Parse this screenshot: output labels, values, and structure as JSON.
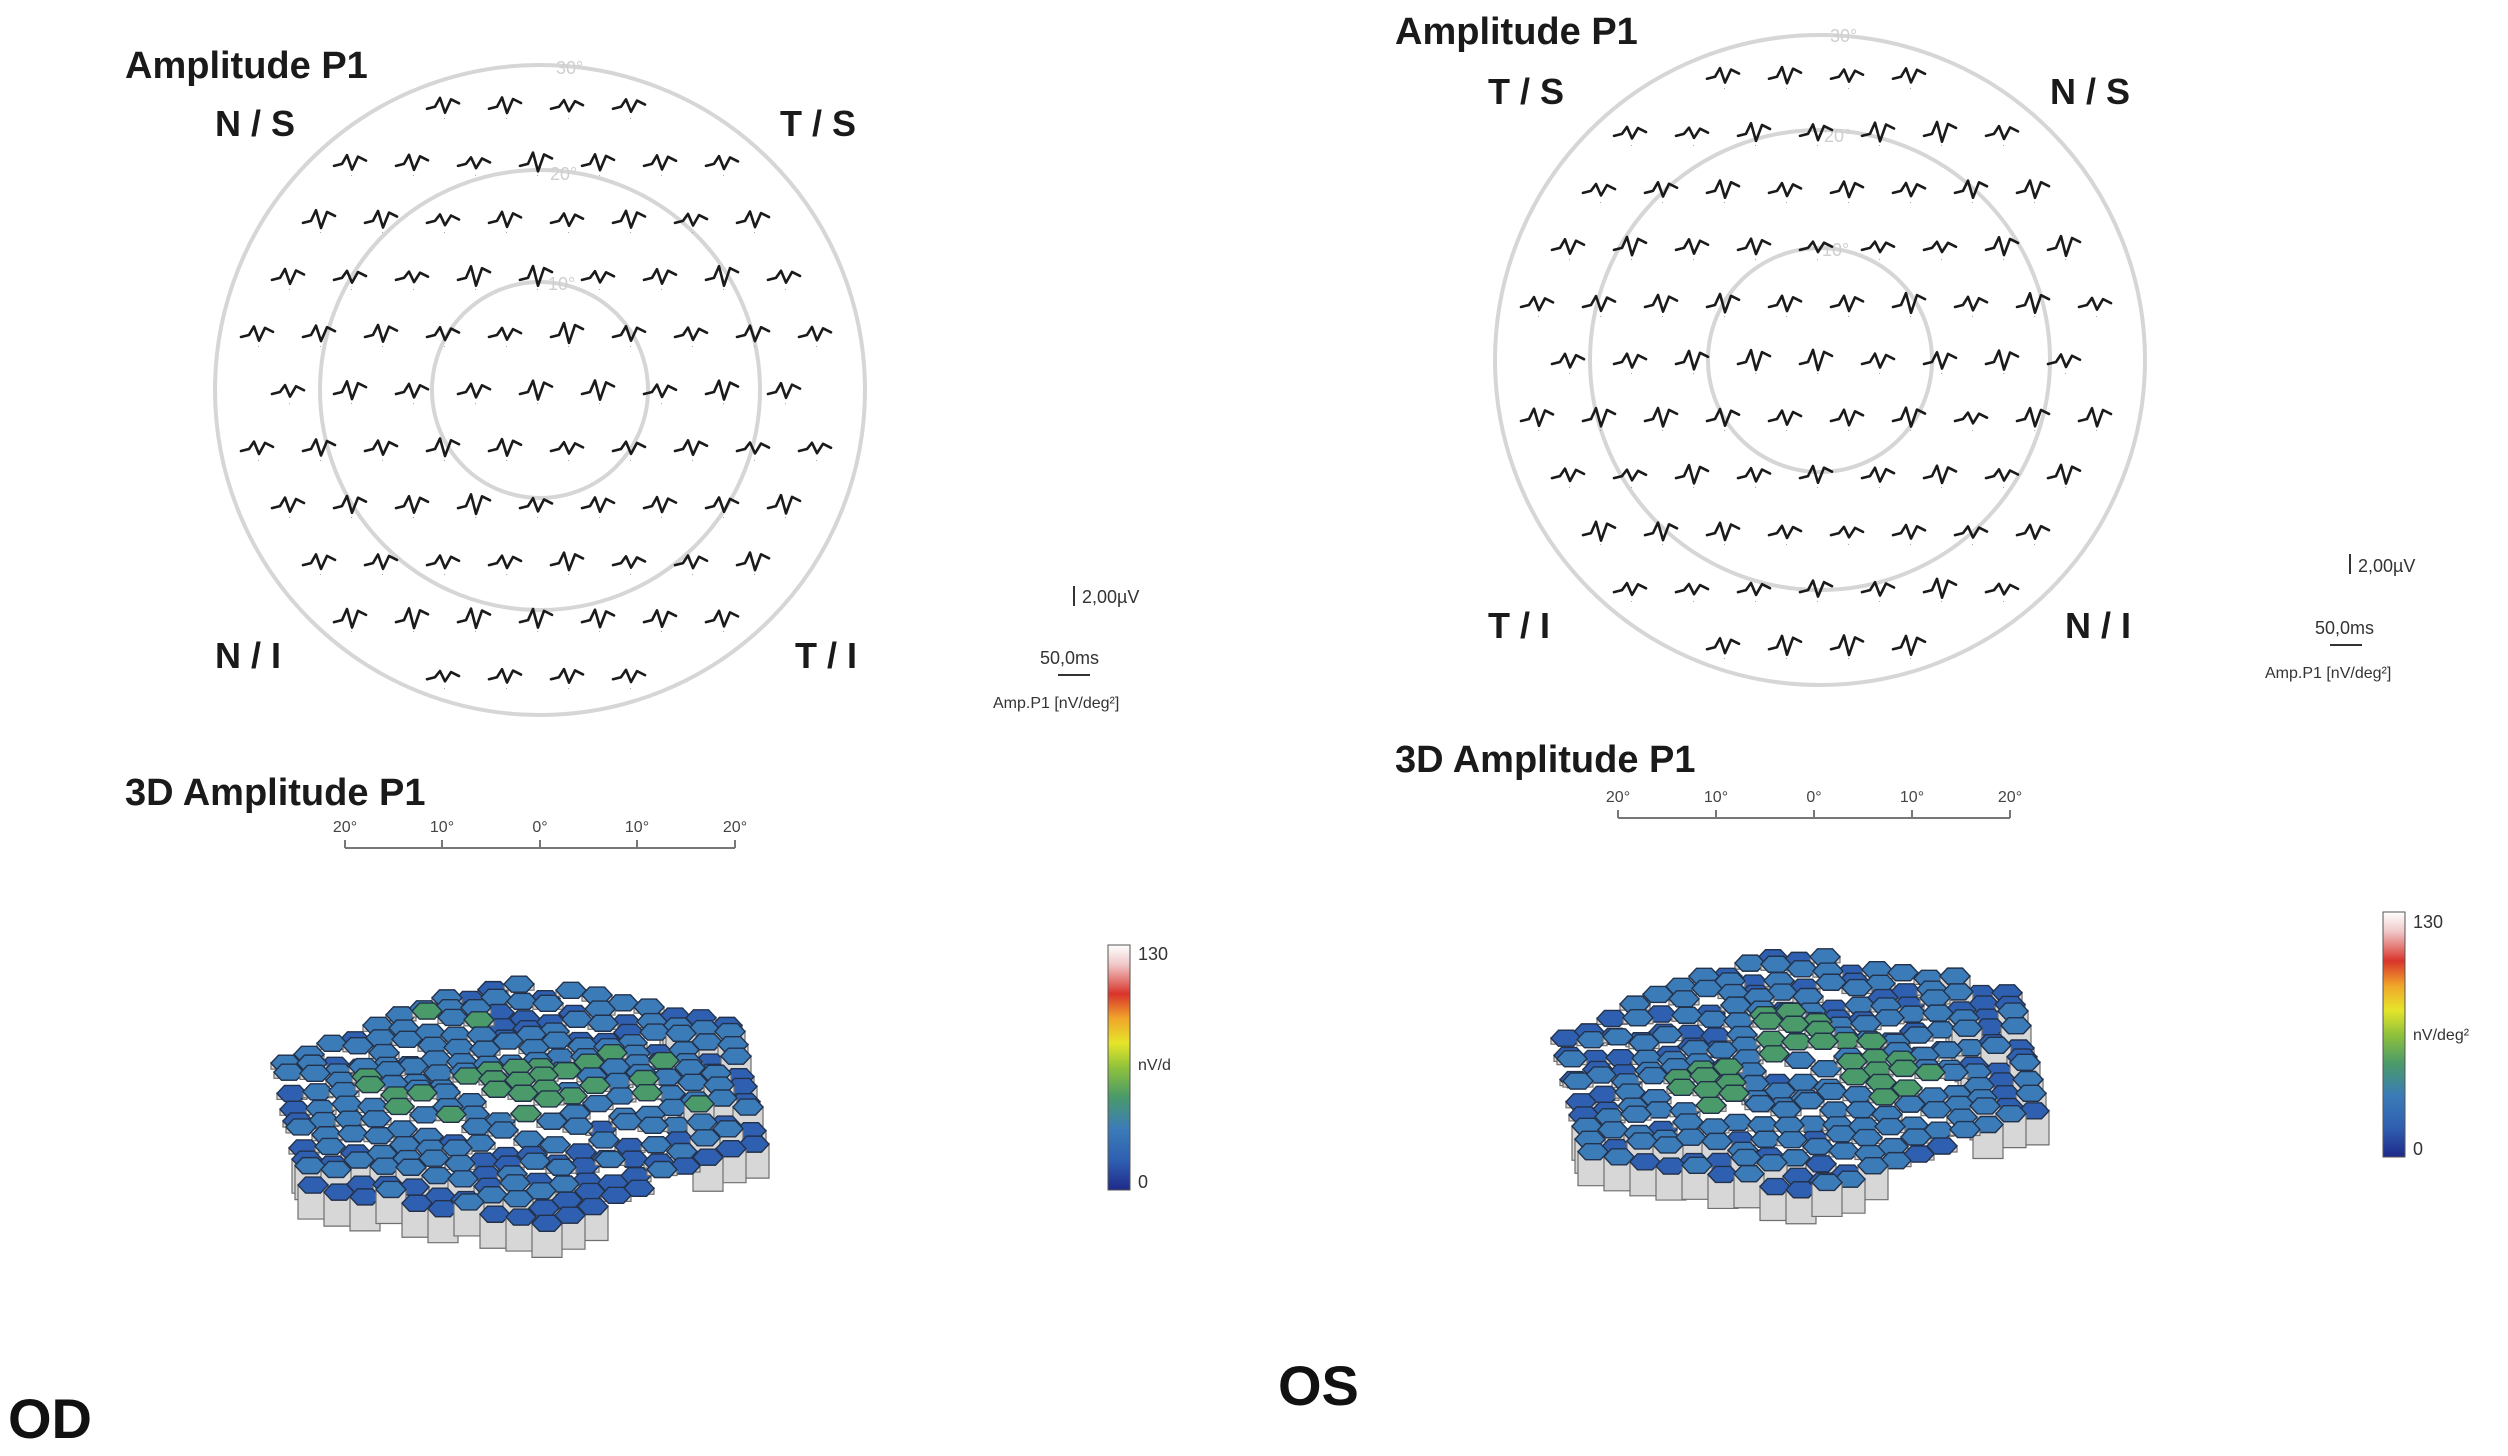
{
  "panels": [
    {
      "id": "od",
      "eye_label": "OD",
      "title_2d": "Amplitude P1",
      "title_3d": "3D Amplitude P1",
      "quadrants": {
        "top_left": "N / S",
        "top_right": "T / S",
        "bottom_left": "N / I",
        "bottom_right": "T / I"
      },
      "ring_labels": [
        "30°",
        "20°",
        "10°"
      ],
      "scale": {
        "voltage": "2,00µV",
        "time": "50,0ms",
        "unit": "Amp.P1 [nV/deg²]"
      },
      "axis_ticks": [
        "20°",
        "10°",
        "0°",
        "10°",
        "20°"
      ],
      "colorbar": {
        "max": "130",
        "mid": "nV/d",
        "min": "0"
      }
    },
    {
      "id": "os",
      "eye_label": "OS",
      "title_2d": "Amplitude P1",
      "title_3d": "3D Amplitude P1",
      "quadrants": {
        "top_left": "T / S",
        "top_right": "N / S",
        "bottom_left": "T / I",
        "bottom_right": "N / I"
      },
      "ring_labels": [
        "30°",
        "20°",
        "10°"
      ],
      "scale": {
        "voltage": "2,00µV",
        "time": "50,0ms",
        "unit": "Amp.P1 [nV/deg²]"
      },
      "axis_ticks": [
        "20°",
        "10°",
        "0°",
        "10°",
        "20°"
      ],
      "colorbar": {
        "max": "130",
        "mid": "nV/deg²",
        "min": "0"
      }
    }
  ],
  "colors": {
    "colormap": [
      "#1f2a8a",
      "#2f5fb0",
      "#3b7bb8",
      "#4a9a6a",
      "#8fc23a",
      "#e6e52a",
      "#f0a52a",
      "#d9342b",
      "#f0c8c8",
      "#ffffff"
    ],
    "ring": "#d6d6d6",
    "trace": "#1a1a1a"
  }
}
